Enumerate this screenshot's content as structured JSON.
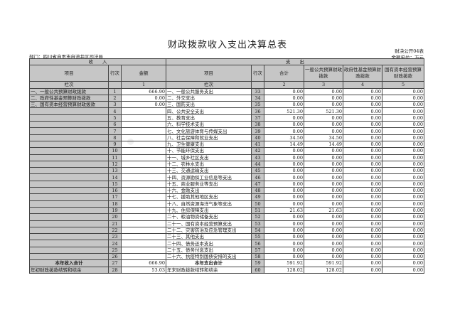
{
  "title": "财政拨款收入支出决算总表",
  "form_code": "财决公开04表",
  "unit": "金额单位：万元",
  "department": "部门：四川省自贡市自流井区司法局",
  "header": {
    "income": "收　　入",
    "expense": "支　　出",
    "item": "项目",
    "line": "行次",
    "amount": "金额",
    "total": "合计",
    "general_budget": "一般公共预算财政拨款",
    "gov_fund": "政府性基金预算财政拨款",
    "state_capital": "国有资本经营预算财政拨款",
    "column_label": "栏次",
    "col_nums": [
      "1",
      "2",
      "3",
      "4",
      "5"
    ]
  },
  "rows": [
    [
      "一、一般公共预算财政拨款",
      "1",
      "666.90",
      "一、一般公共服务支出",
      "33",
      "0.00",
      "0.00",
      "0.00",
      "0.00"
    ],
    [
      "二、政府性基金预算财政拨款",
      "2",
      "0.00",
      "二、外交支出",
      "34",
      "0.00",
      "0.00",
      "0.00",
      "0.00"
    ],
    [
      "三、国有资本经营预算财政拨款",
      "3",
      "0.00",
      "三、国防支出",
      "35",
      "0.00",
      "0.00",
      "0.00",
      "0.00"
    ],
    [
      "",
      "4",
      "",
      "四、公共安全支出",
      "36",
      "521.30",
      "521.30",
      "0.00",
      "0.00"
    ],
    [
      "",
      "5",
      "",
      "五、教育支出",
      "37",
      "0.00",
      "0.00",
      "0.00",
      "0.00"
    ],
    [
      "",
      "6",
      "",
      "六、科学技术支出",
      "38",
      "0.00",
      "0.00",
      "0.00",
      "0.00"
    ],
    [
      "",
      "7",
      "",
      "七、文化旅游体育与传媒支出",
      "39",
      "0.00",
      "0.00",
      "0.00",
      "0.00"
    ],
    [
      "",
      "8",
      "",
      "八、社会保障和就业支出",
      "40",
      "34.50",
      "34.50",
      "0.00",
      "0.00"
    ],
    [
      "",
      "9",
      "",
      "九、卫生健康支出",
      "41",
      "14.49",
      "14.49",
      "0.00",
      "0.00"
    ],
    [
      "",
      "10",
      "",
      "十、节能环保支出",
      "42",
      "0.00",
      "0.00",
      "0.00",
      "0.00"
    ],
    [
      "",
      "11",
      "",
      "十一、城乡社区支出",
      "43",
      "0.00",
      "0.00",
      "0.00",
      "0.00"
    ],
    [
      "",
      "12",
      "",
      "十二、农林水支出",
      "44",
      "0.00",
      "0.00",
      "0.00",
      "0.00"
    ],
    [
      "",
      "13",
      "",
      "十三、交通运输支出",
      "45",
      "0.00",
      "0.00",
      "0.00",
      "0.00"
    ],
    [
      "",
      "14",
      "",
      "十四、资源勘探工业信息等支出",
      "46",
      "0.00",
      "0.00",
      "0.00",
      "0.00"
    ],
    [
      "",
      "15",
      "",
      "十五、商业服务业等支出",
      "47",
      "0.00",
      "0.00",
      "0.00",
      "0.00"
    ],
    [
      "",
      "16",
      "",
      "十六、金融支出",
      "48",
      "0.00",
      "0.00",
      "0.00",
      "0.00"
    ],
    [
      "",
      "17",
      "",
      "十七、援助其他地区支出",
      "49",
      "0.00",
      "0.00",
      "0.00",
      "0.00"
    ],
    [
      "",
      "18",
      "",
      "十八、自然资源海洋气象等支出",
      "50",
      "0.00",
      "0.00",
      "0.00",
      "0.00"
    ],
    [
      "",
      "19",
      "",
      "十九、住房保障支出",
      "51",
      "21.63",
      "21.63",
      "0.00",
      "0.00"
    ],
    [
      "",
      "20",
      "",
      "二十、粮油物资储备支出",
      "52",
      "0.00",
      "0.00",
      "0.00",
      "0.00"
    ],
    [
      "",
      "21",
      "",
      "二十一、国有资本经营预算支出",
      "53",
      "0.00",
      "0.00",
      "0.00",
      "0.00"
    ],
    [
      "",
      "22",
      "",
      "二十二、灾害防治及应急管理支出",
      "54",
      "0.00",
      "0.00",
      "0.00",
      "0.00"
    ],
    [
      "",
      "23",
      "",
      "二十三、其他支出",
      "55",
      "0.00",
      "0.00",
      "0.00",
      "0.00"
    ],
    [
      "",
      "24",
      "",
      "二十四、债务还本支出",
      "56",
      "0.00",
      "0.00",
      "0.00",
      "0.00"
    ],
    [
      "",
      "25",
      "",
      "二十五、债务付息支出",
      "57",
      "0.00",
      "0.00",
      "0.00",
      "0.00"
    ],
    [
      "",
      "26",
      "",
      "二十六、抗疫特别国债安排的支出",
      "58",
      "0.00",
      "0.00",
      "0.00",
      "0.00"
    ],
    [
      "本年收入合计",
      "27",
      "666.90",
      "本年支出合计",
      "59",
      "591.92",
      "591.92",
      "0.00",
      "0.00"
    ],
    [
      "年初财政拨款结转和结余",
      "28",
      "53.03",
      "年末财政拨款结转和结余",
      "60",
      "128.02",
      "128.02",
      "0.00",
      "0.00"
    ]
  ]
}
